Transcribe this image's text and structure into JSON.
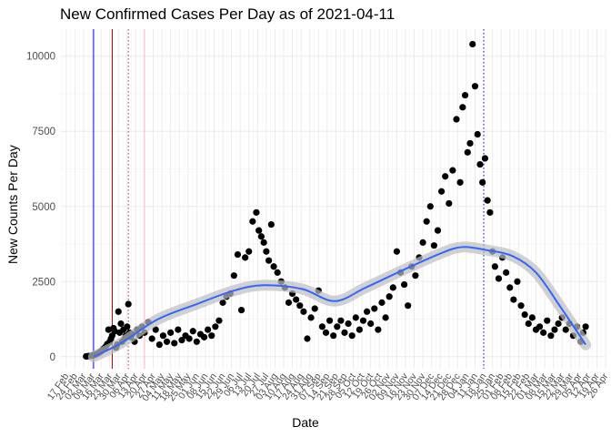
{
  "chart_data": {
    "type": "scatter",
    "title": "New Confirmed Cases Per Day as of 2021-04-11",
    "xlabel": "Date",
    "ylabel": "New Counts Per Day",
    "xlim": [
      "2020-02-12",
      "2021-04-26"
    ],
    "ylim": [
      -400,
      10900
    ],
    "y_ticks": [
      0,
      2500,
      5000,
      7500,
      10000
    ],
    "x_tick_labels": [
      "17 Feb",
      "24 Feb",
      "02 Mar",
      "09 Mar",
      "16 Mar",
      "23 Mar",
      "30 Mar",
      "06 Apr",
      "13 Apr",
      "20 Apr",
      "27 Apr",
      "04 May",
      "11 May",
      "18 May",
      "25 May",
      "01 Jun",
      "08 Jun",
      "15 Jun",
      "22 Jun",
      "29 Jun",
      "06 Jul",
      "13 Jul",
      "20 Jul",
      "27 Jul",
      "03 Aug",
      "10 Aug",
      "17 Aug",
      "24 Aug",
      "31 Aug",
      "07 Sep",
      "14 Sep",
      "21 Sep",
      "28 Sep",
      "05 Oct",
      "12 Oct",
      "19 Oct",
      "26 Oct",
      "02 Nov",
      "09 Nov",
      "16 Nov",
      "23 Nov",
      "30 Nov",
      "07 Dec",
      "14 Dec",
      "21 Dec",
      "28 Dec",
      "04 Jan",
      "11 Jan",
      "18 Jan",
      "25 Jan",
      "01 Feb",
      "08 Feb",
      "15 Feb",
      "22 Feb",
      "01 Mar",
      "08 Mar",
      "15 Mar",
      "22 Mar",
      "29 Mar",
      "05 Apr",
      "12 Apr",
      "19 Apr",
      "26 Apr"
    ],
    "grid": true,
    "point_color": "#000000",
    "smooth_color": "#3366FF",
    "smooth_band_color": "#BDBDBD",
    "smooth_curve": [
      {
        "x": "2020-03-10",
        "y": 0
      },
      {
        "x": "2020-04-01",
        "y": 450
      },
      {
        "x": "2020-05-01",
        "y": 1250
      },
      {
        "x": "2020-06-01",
        "y": 1750
      },
      {
        "x": "2020-07-01",
        "y": 2200
      },
      {
        "x": "2020-07-25",
        "y": 2380
      },
      {
        "x": "2020-08-25",
        "y": 2250
      },
      {
        "x": "2020-09-20",
        "y": 1850
      },
      {
        "x": "2020-10-15",
        "y": 2300
      },
      {
        "x": "2020-11-15",
        "y": 2900
      },
      {
        "x": "2020-12-15",
        "y": 3450
      },
      {
        "x": "2021-01-01",
        "y": 3650
      },
      {
        "x": "2021-01-20",
        "y": 3550
      },
      {
        "x": "2021-02-10",
        "y": 3350
      },
      {
        "x": "2021-03-01",
        "y": 2800
      },
      {
        "x": "2021-03-20",
        "y": 1700
      },
      {
        "x": "2021-04-10",
        "y": 400
      }
    ],
    "vertical_lines": [
      {
        "x": "2020-03-10",
        "color": "#0000FF",
        "style": "solid"
      },
      {
        "x": "2020-03-25",
        "color": "#8B0000",
        "style": "solid"
      },
      {
        "x": "2020-04-07",
        "color": "#CC3333",
        "style": "dotted"
      },
      {
        "x": "2020-04-20",
        "color": "#FFB6C1",
        "style": "solid"
      },
      {
        "x": "2021-01-18",
        "color": "#0000FF",
        "style": "dotted"
      }
    ],
    "series": [
      {
        "values": [
          {
            "x": "2020-03-04",
            "y": 10
          },
          {
            "x": "2020-03-05",
            "y": 15
          },
          {
            "x": "2020-03-06",
            "y": 20
          },
          {
            "x": "2020-03-07",
            "y": 25
          },
          {
            "x": "2020-03-08",
            "y": 30
          },
          {
            "x": "2020-03-09",
            "y": 40
          },
          {
            "x": "2020-03-10",
            "y": 50
          },
          {
            "x": "2020-03-11",
            "y": 60
          },
          {
            "x": "2020-03-12",
            "y": 80
          },
          {
            "x": "2020-03-13",
            "y": 100
          },
          {
            "x": "2020-03-14",
            "y": 120
          },
          {
            "x": "2020-03-15",
            "y": 150
          },
          {
            "x": "2020-03-16",
            "y": 180
          },
          {
            "x": "2020-03-17",
            "y": 220
          },
          {
            "x": "2020-03-18",
            "y": 260
          },
          {
            "x": "2020-03-19",
            "y": 300
          },
          {
            "x": "2020-03-20",
            "y": 350
          },
          {
            "x": "2020-03-21",
            "y": 420
          },
          {
            "x": "2020-03-22",
            "y": 900
          },
          {
            "x": "2020-03-23",
            "y": 500
          },
          {
            "x": "2020-03-24",
            "y": 600
          },
          {
            "x": "2020-03-25",
            "y": 700
          },
          {
            "x": "2020-03-26",
            "y": 950
          },
          {
            "x": "2020-03-27",
            "y": 850
          },
          {
            "x": "2020-03-28",
            "y": 300
          },
          {
            "x": "2020-03-29",
            "y": 400
          },
          {
            "x": "2020-03-30",
            "y": 1500
          },
          {
            "x": "2020-03-31",
            "y": 800
          },
          {
            "x": "2020-04-01",
            "y": 1100
          },
          {
            "x": "2020-04-02",
            "y": 500
          },
          {
            "x": "2020-04-03",
            "y": 900
          },
          {
            "x": "2020-04-04",
            "y": 600
          },
          {
            "x": "2020-04-05",
            "y": 700
          },
          {
            "x": "2020-04-06",
            "y": 1000
          },
          {
            "x": "2020-04-07",
            "y": 1750
          },
          {
            "x": "2020-04-08",
            "y": 800
          },
          {
            "x": "2020-04-09",
            "y": 650
          },
          {
            "x": "2020-04-10",
            "y": 750
          },
          {
            "x": "2020-04-12",
            "y": 500
          },
          {
            "x": "2020-04-14",
            "y": 900
          },
          {
            "x": "2020-04-16",
            "y": 700
          },
          {
            "x": "2020-04-18",
            "y": 1000
          },
          {
            "x": "2020-04-20",
            "y": 800
          },
          {
            "x": "2020-04-23",
            "y": 1150
          },
          {
            "x": "2020-04-26",
            "y": 600
          },
          {
            "x": "2020-04-29",
            "y": 900
          },
          {
            "x": "2020-05-02",
            "y": 400
          },
          {
            "x": "2020-05-05",
            "y": 700
          },
          {
            "x": "2020-05-08",
            "y": 500
          },
          {
            "x": "2020-05-11",
            "y": 800
          },
          {
            "x": "2020-05-14",
            "y": 450
          },
          {
            "x": "2020-05-17",
            "y": 900
          },
          {
            "x": "2020-05-20",
            "y": 550
          },
          {
            "x": "2020-05-23",
            "y": 700
          },
          {
            "x": "2020-05-26",
            "y": 600
          },
          {
            "x": "2020-05-29",
            "y": 850
          },
          {
            "x": "2020-06-01",
            "y": 500
          },
          {
            "x": "2020-06-04",
            "y": 750
          },
          {
            "x": "2020-06-07",
            "y": 650
          },
          {
            "x": "2020-06-10",
            "y": 900
          },
          {
            "x": "2020-06-13",
            "y": 700
          },
          {
            "x": "2020-06-16",
            "y": 1000
          },
          {
            "x": "2020-06-19",
            "y": 1200
          },
          {
            "x": "2020-06-22",
            "y": 1800
          },
          {
            "x": "2020-06-25",
            "y": 2000
          },
          {
            "x": "2020-06-28",
            "y": 2100
          },
          {
            "x": "2020-07-01",
            "y": 2700
          },
          {
            "x": "2020-07-04",
            "y": 3400
          },
          {
            "x": "2020-07-07",
            "y": 1550
          },
          {
            "x": "2020-07-10",
            "y": 3300
          },
          {
            "x": "2020-07-13",
            "y": 3500
          },
          {
            "x": "2020-07-16",
            "y": 4500
          },
          {
            "x": "2020-07-19",
            "y": 4800
          },
          {
            "x": "2020-07-21",
            "y": 4200
          },
          {
            "x": "2020-07-23",
            "y": 4000
          },
          {
            "x": "2020-07-25",
            "y": 3800
          },
          {
            "x": "2020-07-27",
            "y": 3500
          },
          {
            "x": "2020-07-29",
            "y": 3200
          },
          {
            "x": "2020-07-31",
            "y": 4400
          },
          {
            "x": "2020-08-02",
            "y": 3000
          },
          {
            "x": "2020-08-05",
            "y": 2800
          },
          {
            "x": "2020-08-08",
            "y": 2500
          },
          {
            "x": "2020-08-11",
            "y": 2300
          },
          {
            "x": "2020-08-14",
            "y": 1800
          },
          {
            "x": "2020-08-17",
            "y": 2100
          },
          {
            "x": "2020-08-20",
            "y": 1900
          },
          {
            "x": "2020-08-23",
            "y": 1700
          },
          {
            "x": "2020-08-26",
            "y": 1500
          },
          {
            "x": "2020-08-29",
            "y": 600
          },
          {
            "x": "2020-09-01",
            "y": 1300
          },
          {
            "x": "2020-09-04",
            "y": 1600
          },
          {
            "x": "2020-09-07",
            "y": 2200
          },
          {
            "x": "2020-09-10",
            "y": 1000
          },
          {
            "x": "2020-09-13",
            "y": 800
          },
          {
            "x": "2020-09-16",
            "y": 1200
          },
          {
            "x": "2020-09-19",
            "y": 700
          },
          {
            "x": "2020-09-22",
            "y": 1000
          },
          {
            "x": "2020-09-25",
            "y": 1200
          },
          {
            "x": "2020-09-28",
            "y": 800
          },
          {
            "x": "2020-10-01",
            "y": 1100
          },
          {
            "x": "2020-10-04",
            "y": 700
          },
          {
            "x": "2020-10-07",
            "y": 1300
          },
          {
            "x": "2020-10-10",
            "y": 900
          },
          {
            "x": "2020-10-13",
            "y": 1200
          },
          {
            "x": "2020-10-16",
            "y": 1500
          },
          {
            "x": "2020-10-19",
            "y": 1100
          },
          {
            "x": "2020-10-22",
            "y": 1600
          },
          {
            "x": "2020-10-25",
            "y": 900
          },
          {
            "x": "2020-10-28",
            "y": 1800
          },
          {
            "x": "2020-10-31",
            "y": 1300
          },
          {
            "x": "2020-11-03",
            "y": 2000
          },
          {
            "x": "2020-11-06",
            "y": 2300
          },
          {
            "x": "2020-11-09",
            "y": 3500
          },
          {
            "x": "2020-11-12",
            "y": 2800
          },
          {
            "x": "2020-11-15",
            "y": 2400
          },
          {
            "x": "2020-11-18",
            "y": 1700
          },
          {
            "x": "2020-11-21",
            "y": 3000
          },
          {
            "x": "2020-11-24",
            "y": 2700
          },
          {
            "x": "2020-11-27",
            "y": 3300
          },
          {
            "x": "2020-11-30",
            "y": 3800
          },
          {
            "x": "2020-12-03",
            "y": 4500
          },
          {
            "x": "2020-12-06",
            "y": 5000
          },
          {
            "x": "2020-12-09",
            "y": 3700
          },
          {
            "x": "2020-12-12",
            "y": 4200
          },
          {
            "x": "2020-12-15",
            "y": 5500
          },
          {
            "x": "2020-12-18",
            "y": 6000
          },
          {
            "x": "2020-12-21",
            "y": 5100
          },
          {
            "x": "2020-12-24",
            "y": 6200
          },
          {
            "x": "2020-12-27",
            "y": 7900
          },
          {
            "x": "2020-12-30",
            "y": 5800
          },
          {
            "x": "2021-01-01",
            "y": 8300
          },
          {
            "x": "2021-01-03",
            "y": 8700
          },
          {
            "x": "2021-01-05",
            "y": 6800
          },
          {
            "x": "2021-01-07",
            "y": 7100
          },
          {
            "x": "2021-01-09",
            "y": 10400
          },
          {
            "x": "2021-01-11",
            "y": 9000
          },
          {
            "x": "2021-01-13",
            "y": 7400
          },
          {
            "x": "2021-01-15",
            "y": 6400
          },
          {
            "x": "2021-01-17",
            "y": 5800
          },
          {
            "x": "2021-01-19",
            "y": 6600
          },
          {
            "x": "2021-01-21",
            "y": 5200
          },
          {
            "x": "2021-01-23",
            "y": 4800
          },
          {
            "x": "2021-01-25",
            "y": 3500
          },
          {
            "x": "2021-01-27",
            "y": 3000
          },
          {
            "x": "2021-01-30",
            "y": 2600
          },
          {
            "x": "2021-02-02",
            "y": 3300
          },
          {
            "x": "2021-02-05",
            "y": 2800
          },
          {
            "x": "2021-02-08",
            "y": 2300
          },
          {
            "x": "2021-02-11",
            "y": 1900
          },
          {
            "x": "2021-02-14",
            "y": 2500
          },
          {
            "x": "2021-02-17",
            "y": 1700
          },
          {
            "x": "2021-02-20",
            "y": 1400
          },
          {
            "x": "2021-02-23",
            "y": 1100
          },
          {
            "x": "2021-02-26",
            "y": 1300
          },
          {
            "x": "2021-03-01",
            "y": 900
          },
          {
            "x": "2021-03-04",
            "y": 1000
          },
          {
            "x": "2021-03-07",
            "y": 800
          },
          {
            "x": "2021-03-10",
            "y": 1200
          },
          {
            "x": "2021-03-13",
            "y": 700
          },
          {
            "x": "2021-03-16",
            "y": 900
          },
          {
            "x": "2021-03-19",
            "y": 1100
          },
          {
            "x": "2021-03-22",
            "y": 1300
          },
          {
            "x": "2021-03-25",
            "y": 900
          },
          {
            "x": "2021-03-28",
            "y": 1100
          },
          {
            "x": "2021-03-31",
            "y": 700
          },
          {
            "x": "2021-04-03",
            "y": 1000
          },
          {
            "x": "2021-04-06",
            "y": 500
          },
          {
            "x": "2021-04-08",
            "y": 800
          },
          {
            "x": "2021-04-10",
            "y": 1000
          }
        ]
      }
    ]
  }
}
